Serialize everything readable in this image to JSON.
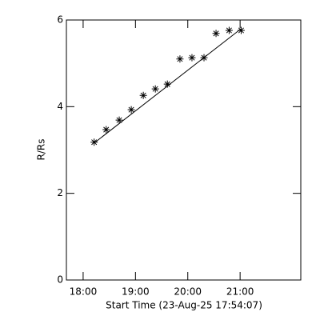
{
  "chart_data": {
    "type": "scatter",
    "x_label": "Start Time (23-Aug-25 17:54:07)",
    "y_label": "R/Rs",
    "xlim": [
      17.68,
      22.16
    ],
    "ylim": [
      0,
      6
    ],
    "xticks": [
      {
        "value": 18,
        "label": "18:00"
      },
      {
        "value": 19,
        "label": "19:00"
      },
      {
        "value": 20,
        "label": "20:00"
      },
      {
        "value": 21,
        "label": "21:00"
      }
    ],
    "yticks": [
      0,
      2,
      4,
      6
    ],
    "series": [
      {
        "marker": "asterisk",
        "color": "#000000",
        "x": [
          18.21,
          18.44,
          18.69,
          18.92,
          19.15,
          19.38,
          19.61,
          19.85,
          20.08,
          20.31,
          20.54,
          20.79,
          21.02
        ],
        "values": [
          3.18,
          3.47,
          3.69,
          3.93,
          4.26,
          4.41,
          4.52,
          5.1,
          5.13,
          5.13,
          5.69,
          5.76,
          5.76
        ]
      },
      {
        "marker": "line",
        "color": "#000000",
        "x": [
          18.21,
          21.02
        ],
        "values": [
          3.16,
          5.8
        ]
      }
    ]
  }
}
